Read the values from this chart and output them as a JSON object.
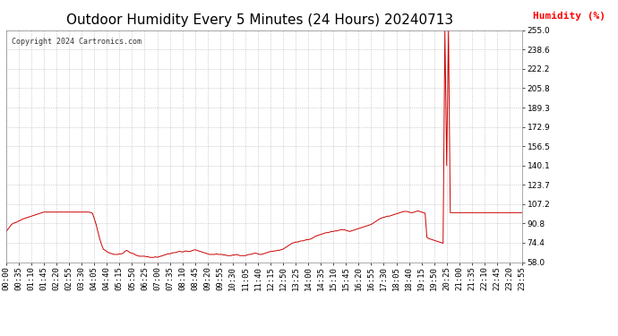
{
  "title": "Outdoor Humidity Every 5 Minutes (24 Hours) 20240713",
  "copyright_text": "Copyright 2024 Cartronics.com",
  "ylabel": "Humidity (%)",
  "ylabel_color": "#ff0000",
  "line_color": "#cc0000",
  "background_color": "#ffffff",
  "grid_color": "#999999",
  "ylim": [
    58.0,
    255.0
  ],
  "yticks": [
    58.0,
    74.4,
    90.8,
    107.2,
    123.7,
    140.1,
    156.5,
    172.9,
    189.3,
    205.8,
    222.2,
    238.6,
    255.0
  ],
  "title_fontsize": 11,
  "tick_fontsize": 6.5,
  "total_points": 288,
  "y_vals": [
    84.0,
    86.0,
    88.0,
    90.0,
    91.0,
    91.5,
    92.0,
    93.0,
    93.5,
    94.5,
    95.0,
    95.5,
    96.0,
    96.5,
    97.0,
    97.5,
    98.0,
    98.5,
    99.0,
    99.5,
    100.0,
    100.5,
    100.5,
    100.5,
    100.5,
    100.5,
    100.5,
    100.5,
    100.5,
    100.5,
    100.5,
    100.5,
    100.5,
    100.5,
    100.5,
    100.5,
    100.5,
    100.5,
    100.5,
    100.5,
    100.5,
    100.5,
    100.5,
    100.5,
    100.5,
    100.5,
    100.5,
    100.0,
    99.5,
    95.0,
    90.0,
    84.0,
    78.0,
    73.0,
    69.0,
    68.0,
    67.0,
    66.0,
    65.5,
    65.0,
    64.5,
    64.5,
    64.5,
    65.0,
    65.0,
    65.5,
    67.0,
    68.0,
    67.0,
    66.0,
    65.5,
    65.0,
    64.0,
    63.5,
    63.0,
    63.0,
    63.0,
    63.0,
    62.5,
    62.5,
    62.0,
    62.0,
    62.0,
    62.5,
    62.0,
    62.5,
    63.0,
    63.5,
    64.0,
    64.5,
    65.0,
    65.0,
    65.5,
    66.0,
    66.0,
    66.5,
    67.0,
    67.0,
    66.5,
    67.0,
    67.5,
    67.0,
    67.0,
    67.5,
    68.0,
    68.5,
    68.0,
    67.5,
    67.0,
    66.5,
    66.0,
    65.5,
    65.0,
    64.5,
    64.5,
    64.5,
    64.5,
    65.0,
    64.5,
    64.5,
    64.5,
    64.0,
    64.0,
    63.5,
    63.5,
    63.5,
    64.0,
    64.0,
    64.5,
    64.0,
    63.5,
    63.5,
    63.5,
    63.5,
    64.0,
    64.5,
    64.5,
    65.0,
    65.5,
    65.5,
    65.0,
    64.5,
    64.5,
    65.0,
    65.5,
    66.0,
    66.5,
    67.0,
    67.0,
    67.5,
    67.5,
    68.0,
    68.0,
    68.5,
    69.0,
    70.0,
    71.0,
    72.0,
    73.0,
    74.0,
    74.5,
    75.0,
    75.0,
    75.5,
    76.0,
    76.0,
    76.5,
    77.0,
    77.0,
    77.5,
    78.0,
    79.0,
    80.0,
    80.5,
    81.0,
    81.5,
    82.0,
    82.5,
    83.0,
    83.0,
    83.5,
    84.0,
    84.0,
    84.5,
    84.5,
    85.0,
    85.5,
    85.5,
    85.5,
    85.0,
    84.5,
    84.0,
    84.5,
    85.0,
    85.5,
    86.0,
    86.5,
    87.0,
    87.5,
    88.0,
    88.5,
    89.0,
    89.5,
    90.0,
    91.0,
    92.0,
    93.0,
    94.0,
    95.0,
    95.5,
    96.0,
    96.5,
    97.0,
    97.0,
    97.5,
    98.0,
    98.5,
    99.0,
    99.5,
    100.0,
    100.5,
    101.0,
    101.0,
    101.0,
    100.5,
    100.0,
    100.0,
    100.5,
    101.0,
    101.5,
    101.0,
    100.5,
    100.0,
    99.5,
    79.0,
    78.0,
    77.5,
    77.0,
    76.5,
    76.0,
    75.5,
    75.0,
    74.5,
    74.0,
    255.0,
    140.0,
    255.0,
    100.0,
    100.0,
    100.0,
    100.0,
    100.0,
    100.0,
    100.0,
    100.0,
    100.0,
    100.0,
    100.0,
    100.0,
    100.0,
    100.0,
    100.0,
    100.0,
    100.0,
    100.0,
    100.0,
    100.0,
    100.0,
    100.0,
    100.0,
    100.0,
    100.0,
    100.0,
    100.0,
    100.0,
    100.0,
    100.0,
    100.0,
    100.0,
    100.0,
    100.0,
    100.0,
    100.0,
    100.0,
    100.0,
    100.0,
    100.0,
    100.0,
    100.0,
    100.0,
    100.0,
    100.0,
    100.0,
    100.0,
    100.0,
    100.0,
    100.0,
    100.0,
    100.0,
    100.0,
    100.0,
    100.0,
    100.0,
    100.0,
    100.0,
    100.0,
    100.0,
    100.0,
    100.0,
    100.0,
    100.0,
    100.0,
    100.0,
    100.0,
    100.0,
    100.0,
    100.0,
    100.0
  ]
}
